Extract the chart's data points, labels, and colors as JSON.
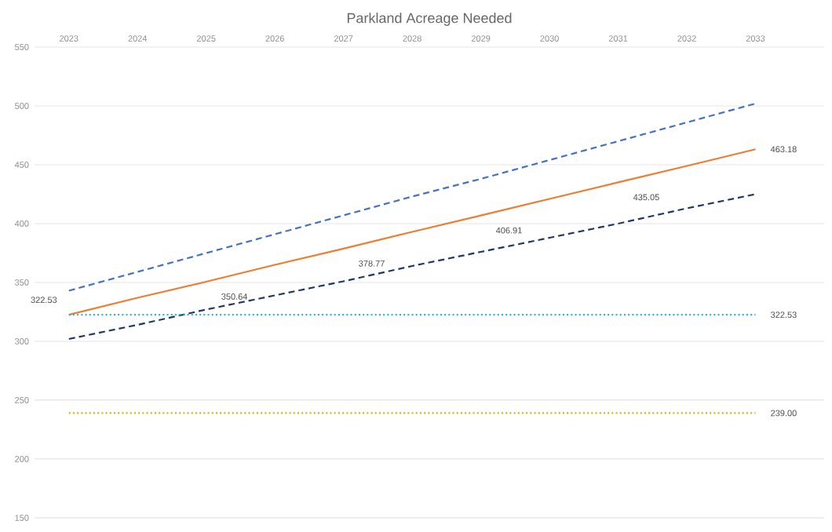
{
  "chart_data": {
    "type": "line",
    "title": "Parkland Acreage Needed",
    "categories": [
      "2023",
      "2024",
      "2025",
      "2026",
      "2027",
      "2028",
      "2029",
      "2030",
      "2031",
      "2032",
      "2033"
    ],
    "ylim": [
      150,
      550
    ],
    "yticks": [
      150,
      200,
      250,
      300,
      350,
      400,
      450,
      500,
      550
    ],
    "grid": "y",
    "series": [
      {
        "color": "#ed7d31",
        "line_style": "solid",
        "values": [
          322.53,
          337,
          350.64,
          365,
          378.77,
          393,
          406.91,
          421,
          435.05,
          449,
          463.18
        ],
        "value_labels": [
          "322.53",
          null,
          "350.64",
          null,
          "378.77",
          null,
          "406.91",
          null,
          "435.05",
          null,
          "463.18"
        ]
      },
      {
        "color": "#4472c4",
        "line_style": "dashed",
        "values": [
          343,
          359,
          375,
          391,
          407,
          423,
          438,
          454,
          470,
          486,
          502
        ]
      },
      {
        "color": "#1f3864",
        "line_style": "dashed",
        "values": [
          302,
          314,
          327,
          339,
          351,
          364,
          376,
          388,
          400,
          413,
          425
        ]
      },
      {
        "color": "#2bb3d6",
        "line_style": "dotted",
        "values": [
          322.53,
          322.53,
          322.53,
          322.53,
          322.53,
          322.53,
          322.53,
          322.53,
          322.53,
          322.53,
          322.53
        ],
        "value_labels": [
          null,
          null,
          null,
          null,
          null,
          null,
          null,
          null,
          null,
          null,
          "322.53"
        ]
      },
      {
        "color": "#d6b400",
        "line_style": "dotted",
        "values": [
          239.0,
          239.0,
          239.0,
          239.0,
          239.0,
          239.0,
          239.0,
          239.0,
          239.0,
          239.0,
          239.0
        ],
        "value_labels": [
          null,
          null,
          null,
          null,
          null,
          null,
          null,
          null,
          null,
          null,
          "239.00"
        ]
      }
    ]
  }
}
